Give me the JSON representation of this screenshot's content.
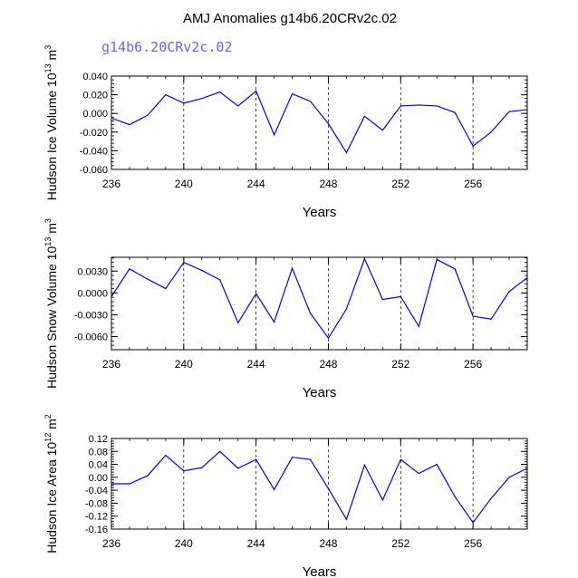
{
  "title": "AMJ Anomalies g14b6.20CRv2c.02",
  "subtitle": "g14b6.20CRv2c.02",
  "colors": {
    "line": "#0000ff",
    "subtitle": "#6464ff",
    "axis": "#000000"
  },
  "chart_data": [
    {
      "type": "line",
      "xlabel": "Years",
      "ylabel": "Hudson Ice Volume",
      "yunit_scale": "10",
      "yunit_exp": "13",
      "yunit_tail": " m",
      "yunit_tail_exp": "3",
      "xlim": [
        236,
        259
      ],
      "ylim": [
        -0.06,
        0.04
      ],
      "xticks": [
        236,
        240,
        244,
        248,
        252,
        256
      ],
      "xtick_labels": [
        "236",
        "240",
        "244",
        "248",
        "252",
        "256"
      ],
      "yticks": [
        -0.06,
        -0.04,
        -0.02,
        0.0,
        0.02,
        0.04
      ],
      "ytick_labels": [
        "-0.060",
        "-0.040",
        "-0.020",
        "0.000",
        "0.020",
        "0.040"
      ],
      "grid_x_dashed": [
        240,
        244,
        248,
        252,
        256
      ],
      "series": [
        {
          "x": [
            236,
            237,
            238,
            239,
            240,
            241,
            242,
            243,
            244,
            245,
            246,
            247,
            248,
            249,
            250,
            251,
            252,
            253,
            254,
            255,
            256,
            257,
            258,
            259
          ],
          "values": [
            -0.005,
            -0.012,
            -0.002,
            0.02,
            0.011,
            0.016,
            0.023,
            0.008,
            0.024,
            -0.023,
            0.021,
            0.013,
            -0.011,
            -0.042,
            -0.003,
            -0.018,
            0.008,
            0.009,
            0.008,
            0.001,
            -0.035,
            -0.02,
            0.002,
            0.004
          ]
        }
      ]
    },
    {
      "type": "line",
      "xlabel": "Years",
      "ylabel": "Hudson Snow Volume",
      "yunit_scale": "10",
      "yunit_exp": "13",
      "yunit_tail": " m",
      "yunit_tail_exp": "3",
      "xlim": [
        236,
        259
      ],
      "ylim": [
        -0.0078,
        0.0049
      ],
      "xticks": [
        236,
        240,
        244,
        248,
        252,
        256
      ],
      "xtick_labels": [
        "236",
        "240",
        "244",
        "248",
        "252",
        "256"
      ],
      "yticks": [
        -0.006,
        -0.003,
        0.0,
        0.003
      ],
      "ytick_labels": [
        "-0.0060",
        "-0.0030",
        "0.0000",
        "0.0030"
      ],
      "grid_x_dashed": [
        240,
        244,
        248,
        252,
        256
      ],
      "series": [
        {
          "x": [
            236,
            237,
            238,
            239,
            240,
            241,
            242,
            243,
            244,
            245,
            246,
            247,
            248,
            249,
            250,
            251,
            252,
            253,
            254,
            255,
            256,
            257,
            258,
            259
          ],
          "values": [
            -0.0005,
            0.0033,
            0.0019,
            0.0006,
            0.0042,
            0.0031,
            0.0018,
            -0.0041,
            -0.0001,
            -0.004,
            0.0034,
            -0.0028,
            -0.0062,
            -0.0022,
            0.0047,
            -0.0009,
            -0.0005,
            -0.0046,
            0.0046,
            0.0033,
            -0.0032,
            -0.0036,
            0.0002,
            0.0021
          ]
        }
      ]
    },
    {
      "type": "line",
      "xlabel": "Years",
      "ylabel": "Hudson Ice Area",
      "yunit_scale": "10",
      "yunit_exp": "12",
      "yunit_tail": " m",
      "yunit_tail_exp": "2",
      "xlim": [
        236,
        259
      ],
      "ylim": [
        -0.16,
        0.12
      ],
      "xticks": [
        236,
        240,
        244,
        248,
        252,
        256
      ],
      "xtick_labels": [
        "236",
        "240",
        "244",
        "248",
        "252",
        "256"
      ],
      "yticks": [
        -0.16,
        -0.12,
        -0.08,
        -0.04,
        0.0,
        0.04,
        0.08,
        0.12
      ],
      "ytick_labels": [
        "-0.16",
        "-0.12",
        "-0.08",
        "-0.04",
        "0.00",
        "0.04",
        "0.08",
        "0.12"
      ],
      "grid_x_dashed": [
        240,
        244,
        248,
        252,
        256
      ],
      "series": [
        {
          "x": [
            236,
            237,
            238,
            239,
            240,
            241,
            242,
            243,
            244,
            245,
            246,
            247,
            248,
            249,
            250,
            251,
            252,
            253,
            254,
            255,
            256,
            257,
            258,
            259
          ],
          "values": [
            -0.02,
            -0.02,
            0.005,
            0.068,
            0.02,
            0.03,
            0.08,
            0.028,
            0.055,
            -0.038,
            0.062,
            0.055,
            -0.035,
            -0.13,
            0.038,
            -0.07,
            0.055,
            0.012,
            0.04,
            -0.06,
            -0.14,
            -0.065,
            0.0,
            0.028
          ]
        }
      ]
    }
  ]
}
